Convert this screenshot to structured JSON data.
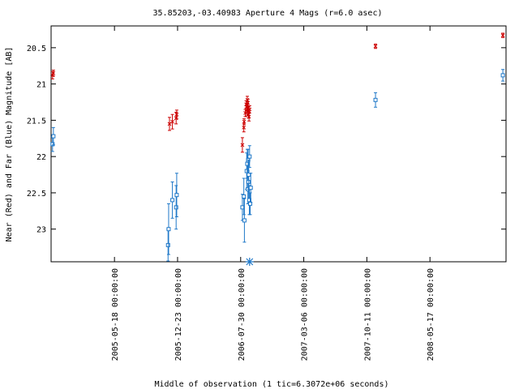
{
  "chart_data": {
    "type": "scatter",
    "title": "35.85203,-03.40983   Aperture 4 Mags (r=6.0 asec)",
    "xlabel": "Middle of observation (1 tic=6.3072e+06 seconds)",
    "ylabel": "Near (Red) and Far (Blue) Magnitude [AB]",
    "ylim": [
      23.45,
      20.2
    ],
    "y_inverted": true,
    "xlim": [
      "2004-10-10",
      "2009-02-05"
    ],
    "x_ticks": [
      {
        "date": "2005-05-18",
        "label": "2005-05-18 00:00:00"
      },
      {
        "date": "2005-12-23",
        "label": "2005-12-23 00:00:00"
      },
      {
        "date": "2006-07-30",
        "label": "2006-07-30 00:00:00"
      },
      {
        "date": "2007-03-06",
        "label": "2007-03-06 00:00:00"
      },
      {
        "date": "2007-10-11",
        "label": "2007-10-11 00:00:00"
      },
      {
        "date": "2008-05-17",
        "label": "2008-05-17 00:00:00"
      }
    ],
    "y_ticks": [
      20.5,
      21,
      21.5,
      22,
      22.5,
      23
    ],
    "grid": false,
    "colors": {
      "near": "#cc0000",
      "far": "#1f78c8"
    },
    "series": [
      {
        "style": "x",
        "color": "#cc0000",
        "points": [
          {
            "x": "2004-10-15",
            "y": 20.88,
            "err": 0.05
          },
          {
            "x": "2004-10-18",
            "y": 20.85,
            "err": 0.04
          },
          {
            "x": "2005-11-25",
            "y": 21.55,
            "err": 0.09
          },
          {
            "x": "2005-12-05",
            "y": 21.52,
            "err": 0.1
          },
          {
            "x": "2005-12-18",
            "y": 21.47,
            "err": 0.08
          },
          {
            "x": "2005-12-20",
            "y": 21.42,
            "err": 0.06
          },
          {
            "x": "2006-08-05",
            "y": 21.84,
            "err": 0.1
          },
          {
            "x": "2006-08-10",
            "y": 21.6,
            "err": 0.06
          },
          {
            "x": "2006-08-11",
            "y": 21.52,
            "err": 0.04
          },
          {
            "x": "2006-08-15",
            "y": 21.4,
            "err": 0.05
          },
          {
            "x": "2006-08-18",
            "y": 21.28,
            "err": 0.05
          },
          {
            "x": "2006-08-20",
            "y": 21.32,
            "err": 0.05
          },
          {
            "x": "2006-08-22",
            "y": 21.38,
            "err": 0.06
          },
          {
            "x": "2006-08-24",
            "y": 21.33,
            "err": 0.05
          },
          {
            "x": "2006-08-26",
            "y": 21.36,
            "err": 0.05
          },
          {
            "x": "2006-08-28",
            "y": 21.45,
            "err": 0.06
          },
          {
            "x": "2006-08-30",
            "y": 21.35,
            "err": 0.05
          },
          {
            "x": "2006-08-22",
            "y": 21.22,
            "err": 0.05
          },
          {
            "x": "2006-08-24",
            "y": 21.26,
            "err": 0.05
          },
          {
            "x": "2006-08-26",
            "y": 21.42,
            "err": 0.05
          },
          {
            "x": "2007-11-10",
            "y": 20.48,
            "err": 0.03
          },
          {
            "x": "2009-01-25",
            "y": 20.33,
            "err": 0.03
          }
        ]
      },
      {
        "style": "square",
        "color": "#1f78c8",
        "points": [
          {
            "x": "2004-10-15",
            "y": 21.83,
            "err": 0.1
          },
          {
            "x": "2004-10-18",
            "y": 21.72,
            "err": 0.12
          },
          {
            "x": "2005-11-20",
            "y": 23.22,
            "err": 0.22
          },
          {
            "x": "2005-11-22",
            "y": 23.0,
            "err": 0.35
          },
          {
            "x": "2005-12-05",
            "y": 22.6,
            "err": 0.25
          },
          {
            "x": "2005-12-18",
            "y": 22.7,
            "err": 0.3
          },
          {
            "x": "2005-12-20",
            "y": 22.53,
            "err": 0.3
          },
          {
            "x": "2006-08-05",
            "y": 22.7,
            "err": 0.18
          },
          {
            "x": "2006-08-10",
            "y": 22.55,
            "err": 0.25
          },
          {
            "x": "2006-08-12",
            "y": 22.88,
            "err": 0.3
          },
          {
            "x": "2006-08-20",
            "y": 22.2,
            "err": 0.25
          },
          {
            "x": "2006-08-22",
            "y": 22.1,
            "err": 0.2
          },
          {
            "x": "2006-08-24",
            "y": 22.45,
            "err": 0.2
          },
          {
            "x": "2006-08-25",
            "y": 22.05,
            "err": 0.15
          },
          {
            "x": "2006-08-26",
            "y": 22.35,
            "err": 0.3
          },
          {
            "x": "2006-08-27",
            "y": 22.25,
            "err": 0.2
          },
          {
            "x": "2006-08-29",
            "y": 22.6,
            "err": 0.2
          },
          {
            "x": "2006-08-30",
            "y": 22.0,
            "err": 0.15
          },
          {
            "x": "2006-09-01",
            "y": 22.65,
            "err": 0.15
          },
          {
            "x": "2006-09-03",
            "y": 22.43,
            "err": 0.2
          },
          {
            "x": "2007-11-10",
            "y": 21.22,
            "err": 0.1
          },
          {
            "x": "2009-01-25",
            "y": 20.88,
            "err": 0.08
          }
        ]
      }
    ],
    "markers": [
      {
        "x": "2006-08-30",
        "y": 23.45,
        "style": "star",
        "color": "#1f78c8"
      }
    ]
  }
}
